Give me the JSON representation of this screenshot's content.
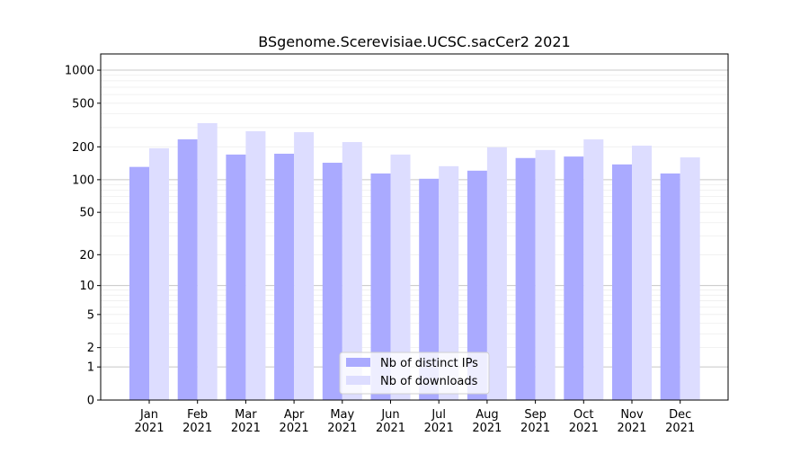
{
  "chart_data": {
    "type": "bar",
    "title": "BSgenome.Scerevisiae.UCSC.sacCer2 2021",
    "xlabel": "",
    "ylabel": "",
    "yscale": "log(1+y)",
    "ylim": [
      0,
      1300
    ],
    "yticks": [
      0,
      1,
      2,
      5,
      10,
      20,
      50,
      100,
      200,
      500,
      1000
    ],
    "categories": [
      "Jan\n2021",
      "Feb\n2021",
      "Mar\n2021",
      "Apr\n2021",
      "May\n2021",
      "Jun\n2021",
      "Jul\n2021",
      "Aug\n2021",
      "Sep\n2021",
      "Oct\n2021",
      "Nov\n2021",
      "Dec\n2021"
    ],
    "series": [
      {
        "name": "Nb of distinct IPs",
        "color": "#aaaaff",
        "values": [
          131,
          234,
          170,
          173,
          143,
          114,
          102,
          121,
          158,
          163,
          138,
          114
        ]
      },
      {
        "name": "Nb of downloads",
        "color": "#ddddff",
        "values": [
          194,
          329,
          278,
          272,
          221,
          170,
          133,
          198,
          187,
          234,
          205,
          160
        ]
      }
    ],
    "grid": true,
    "legend": "bottom-center"
  }
}
